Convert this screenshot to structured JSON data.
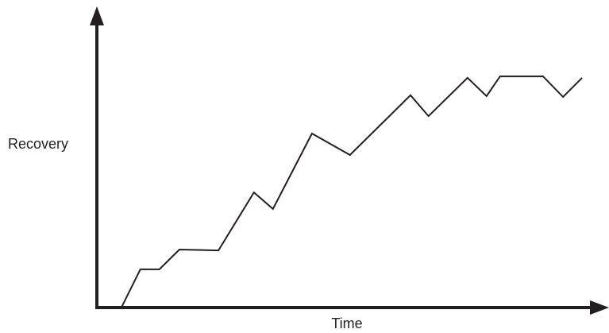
{
  "chart_data": {
    "type": "line",
    "x_label": "Time",
    "y_label": "Recovery",
    "x": [
      4.9,
      8.7,
      12.5,
      16.5,
      24.3,
      31.4,
      35.2,
      43.0,
      50.6,
      62.7,
      66.3,
      74.1,
      77.9,
      80.6,
      89.2,
      93.2,
      97.0
    ],
    "values": [
      0,
      13.2,
      13.2,
      20.0,
      19.7,
      39.7,
      34.0,
      60.0,
      52.6,
      73.2,
      66.0,
      79.2,
      72.9,
      79.7,
      79.7,
      72.6,
      79.2
    ],
    "color": "#231f20",
    "xlim": [
      0,
      100
    ],
    "ylim": [
      0,
      100
    ]
  }
}
